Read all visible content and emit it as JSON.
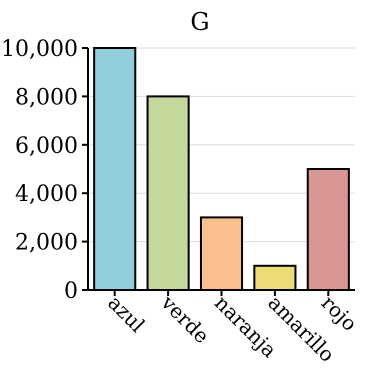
{
  "chart_data": {
    "type": "bar",
    "title": "G",
    "xlabel": "",
    "ylabel": "",
    "categories": [
      "azul",
      "verde",
      "naranja",
      "amarillo",
      "rojo"
    ],
    "values": [
      10000,
      8000,
      3000,
      1000,
      5000
    ],
    "colors": [
      "#92cddd",
      "#c4d89b",
      "#f9c08e",
      "#eedd77",
      "#d99695"
    ],
    "ylim": [
      0,
      10000
    ],
    "yticks": [
      0,
      2000,
      4000,
      6000,
      8000,
      10000
    ],
    "ytick_labels": [
      "0",
      "2,000",
      "4,000",
      "6,000",
      "8,000",
      "10,000"
    ],
    "grid": true,
    "legend": "none"
  }
}
